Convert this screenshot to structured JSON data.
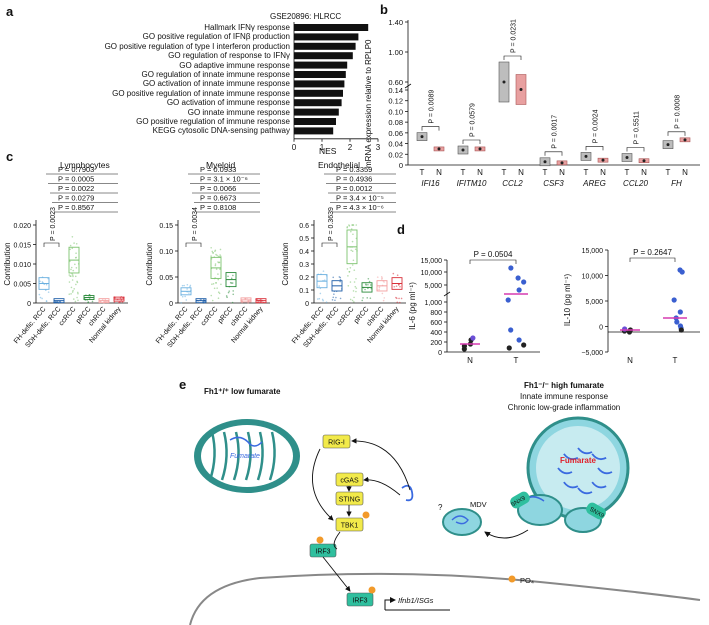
{
  "panels": {
    "a": {
      "letter": "a",
      "dataset_label": "GSE20896: HLRCC",
      "xlabel": "NES",
      "terms": [
        "Hallmark IFNγ response",
        "GO positive regulation of IFNβ production",
        "GO positive regulation of type I interferon production",
        "GO regulation of response to IFNγ",
        "GO adaptive immune response",
        "GO regulation of innate immune response",
        "GO activation of innate immune response",
        "GO positive regulation of innate immune response",
        "GO activation of immune response",
        "GO innate immune response",
        "GO positive regulation of immune response",
        "KEGG cytosolic DNA-sensing pathway"
      ]
    },
    "b": {
      "letter": "b",
      "ylabel": "mRNA expression relative to RPLP0",
      "genes": [
        "IFI16",
        "IFITM10",
        "CCL2",
        "CSF3",
        "AREG",
        "CCL20",
        "FH"
      ],
      "pvalues": [
        "P = 0.0089",
        "P = 0.0579",
        "P = 0.0231",
        "P = 0.0017",
        "P = 0.0024",
        "P = 0.5511",
        "P = 0.0008"
      ],
      "group_t": "T",
      "group_n": "N",
      "yticks_low": [
        "0",
        "0.02",
        "0.04",
        "0.06",
        "0.08",
        "0.10",
        "0.12",
        "0.14"
      ],
      "yticks_high": [
        "0.60",
        "1.00",
        "1.40"
      ]
    },
    "c": {
      "letter": "c",
      "ylabel": "Contribution",
      "categories": [
        "FH-defic. RCC",
        "SDH-defic. RCC",
        "ccRCC",
        "pRCC",
        "chRCC",
        "Normal kidney"
      ],
      "subpanels": [
        {
          "title": "Lymphocytes",
          "pvalues": [
            "P = 0.7903",
            "P = 0.0005",
            "P = 0.0022",
            "P = 0.0279",
            "P = 0.8567"
          ],
          "inner_p": "P = 0.0023",
          "yticks": [
            "0",
            "0.005",
            "0.010",
            "0.015",
            "0.020"
          ]
        },
        {
          "title": "Myeloid",
          "pvalues": [
            "P = 0.0933",
            "P = 3.1 × 10⁻⁶",
            "P = 0.0066",
            "P = 0.6673",
            "P = 0.8108"
          ],
          "inner_p": "P = 0.0034",
          "yticks": [
            "0",
            "0.05",
            "0.10",
            "0.15"
          ]
        },
        {
          "title": "Endothelial",
          "pvalues": [
            "P = 0.3359",
            "P = 0.4936",
            "P = 0.0012",
            "P = 3.4 × 10⁻⁵",
            "P = 4.3 × 10⁻⁶"
          ],
          "inner_p": "P = 0.3639",
          "yticks": [
            "0",
            "0.1",
            "0.2",
            "0.3",
            "0.4",
            "0.5",
            "0.6"
          ]
        }
      ]
    },
    "d": {
      "letter": "d",
      "left": {
        "ylabel": "IL-6 (pg ml⁻¹)",
        "pvalue": "P = 0.0504",
        "yticks": [
          "0",
          "200",
          "400",
          "600",
          "800",
          "1,000",
          "5,000",
          "10,000",
          "15,000"
        ],
        "xcats": [
          "N",
          "T"
        ]
      },
      "right": {
        "ylabel": "IL-10 (pg ml⁻¹)",
        "pvalue": "P = 0.2647",
        "yticks": [
          "−5,000",
          "0",
          "5,000",
          "10,000",
          "15,000"
        ],
        "xcats": [
          "N",
          "T"
        ]
      }
    },
    "e": {
      "letter": "e",
      "left_title": "Fh1⁺/⁺ low fumarate",
      "right_title": "Fh1⁻/⁻ high fumarate",
      "right_sub1": "Innate immune response",
      "right_sub2": "Chronic low-grade inflammation",
      "fumarate_left": "Fumarate",
      "fumarate_right": "Fumarate",
      "nodes": [
        "RIG-I",
        "cGAS",
        "STING",
        "TBK1",
        "IRF3"
      ],
      "nucleus_irf3": "IRF3",
      "gene_label": "Ifnb1/ISGs",
      "mdv": "MDV",
      "question": "?",
      "snx9_a": "SNX9",
      "snx9_b": "SNX9",
      "po4": "PO₄"
    }
  },
  "chart_data": [
    {
      "type": "bar",
      "panel": "a",
      "title": "GSE20896: HLRCC",
      "categories": [
        "Hallmark IFNγ response",
        "GO positive regulation of IFNβ production",
        "GO positive regulation of type I interferon production",
        "GO regulation of response to IFNγ",
        "GO adaptive immune response",
        "GO regulation of innate immune response",
        "GO activation of innate immune response",
        "GO positive regulation of innate immune response",
        "GO activation of immune response",
        "GO innate immune response",
        "GO positive regulation of immune response",
        "KEGG cytosolic DNA-sensing pathway"
      ],
      "values": [
        2.65,
        2.3,
        2.2,
        2.1,
        1.9,
        1.85,
        1.8,
        1.75,
        1.7,
        1.6,
        1.5,
        1.4
      ],
      "xlabel": "NES",
      "xlim": [
        0,
        3
      ],
      "xticks": [
        "0",
        "1",
        "2",
        "3"
      ],
      "orientation": "horizontal"
    },
    {
      "type": "bar",
      "panel": "b",
      "categories": [
        "IFI16",
        "IFITM10",
        "CCL2",
        "CSF3",
        "AREG",
        "CCL20",
        "FH"
      ],
      "series": [
        {
          "name": "T",
          "values": [
            0.053,
            0.028,
            0.6,
            0.006,
            0.016,
            0.014,
            0.038
          ]
        },
        {
          "name": "N",
          "values": [
            0.03,
            0.03,
            0.5,
            0.004,
            0.009,
            0.008,
            0.047
          ]
        }
      ],
      "ylabel": "mRNA expression relative to RPLP0"
    }
  ]
}
